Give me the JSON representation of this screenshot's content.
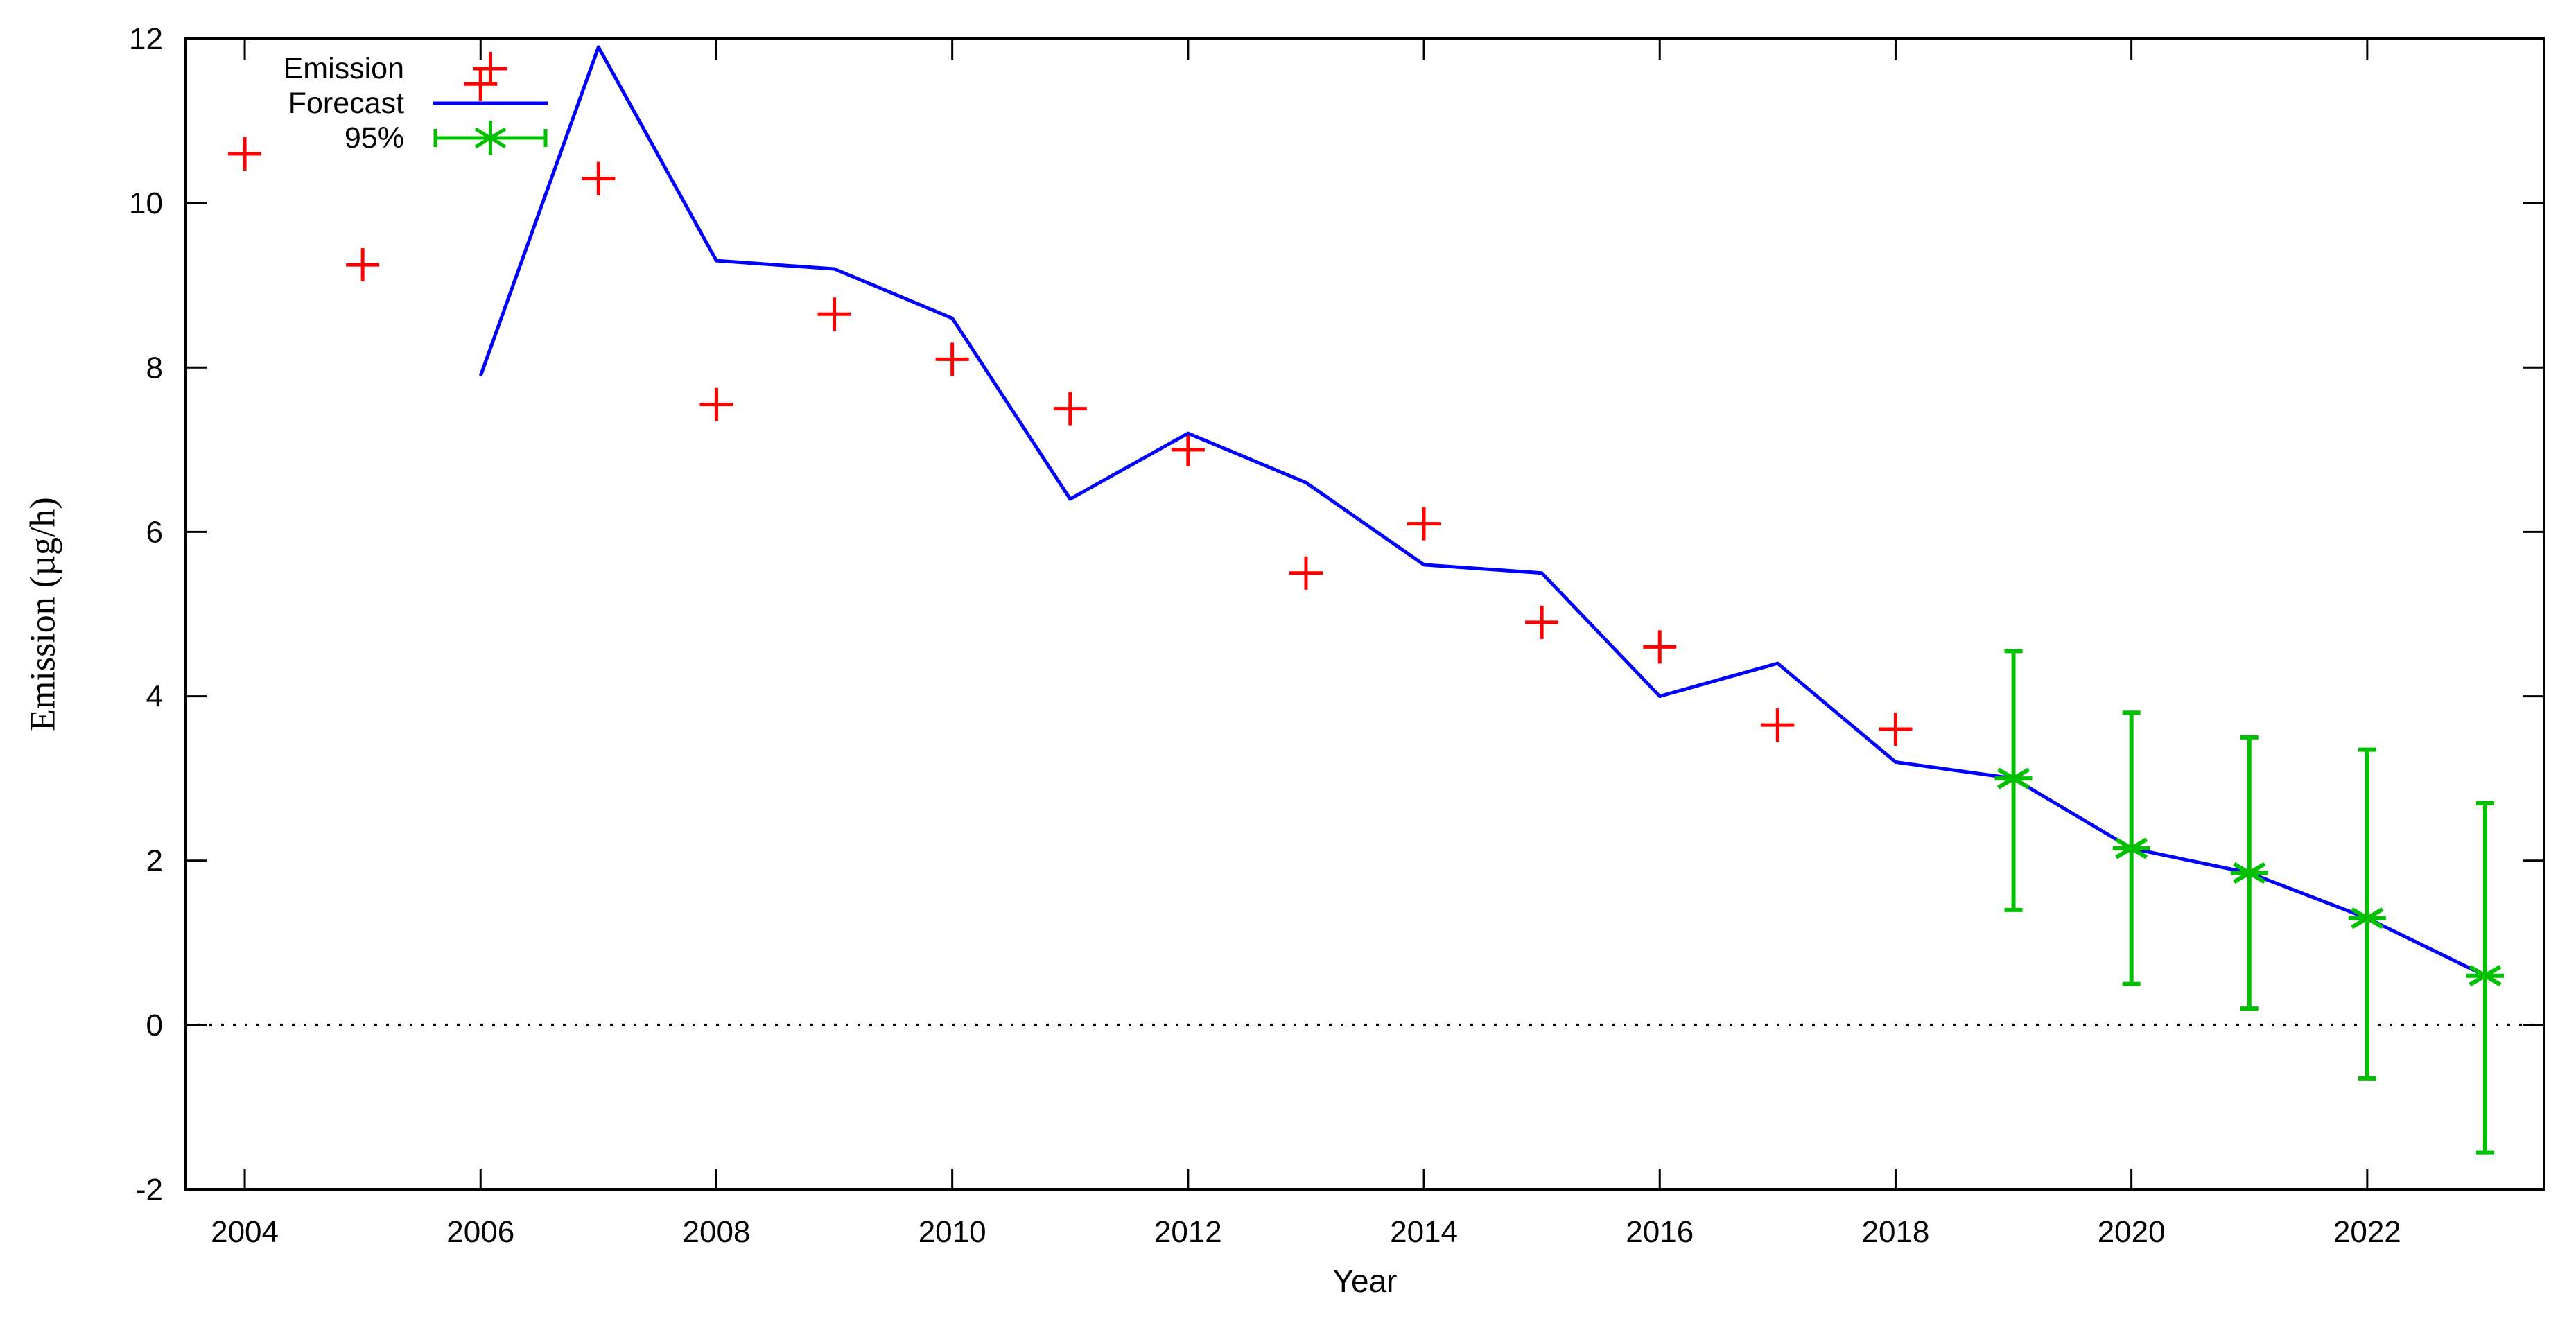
{
  "chart_data": {
    "type": "line",
    "title": "",
    "xlabel": "Year",
    "ylabel": "Emission (µg/h)",
    "xlim": [
      2003.5,
      2023.5
    ],
    "ylim": [
      -2,
      12
    ],
    "x_ticks": [
      2004,
      2006,
      2008,
      2010,
      2012,
      2014,
      2016,
      2018,
      2020,
      2022
    ],
    "y_ticks": [
      -2,
      0,
      2,
      4,
      6,
      8,
      10,
      12
    ],
    "zero_line_y": 0,
    "grid": false,
    "legend_position": "top-left",
    "colors": {
      "emission": "#ff0000",
      "forecast": "#0000ff",
      "ci": "#00c000",
      "axis": "#000000",
      "background": "#ffffff"
    },
    "series": [
      {
        "name": "Emission",
        "type": "scatter",
        "marker": "plus",
        "color": "#ff0000",
        "x": [
          2004,
          2005,
          2006,
          2007,
          2008,
          2009,
          2010,
          2011,
          2012,
          2013,
          2014,
          2015,
          2016,
          2017,
          2018
        ],
        "y": [
          10.6,
          9.25,
          11.45,
          10.3,
          7.55,
          8.65,
          8.1,
          7.5,
          7.0,
          5.5,
          6.1,
          4.9,
          4.6,
          3.65,
          3.6
        ]
      },
      {
        "name": "Forecast",
        "type": "line",
        "color": "#0000ff",
        "x": [
          2006,
          2007,
          2008,
          2009,
          2010,
          2011,
          2012,
          2013,
          2014,
          2015,
          2016,
          2017,
          2018,
          2019,
          2020,
          2021,
          2022,
          2023
        ],
        "y": [
          7.9,
          11.9,
          9.3,
          9.2,
          8.6,
          6.4,
          7.2,
          6.6,
          5.6,
          5.5,
          4.0,
          4.4,
          3.2,
          3.0,
          2.15,
          1.85,
          1.3,
          0.6
        ]
      },
      {
        "name": "95%",
        "type": "errorbar",
        "marker": "asterisk",
        "color": "#00c000",
        "x": [
          2019,
          2020,
          2021,
          2022,
          2023
        ],
        "y": [
          3.0,
          2.15,
          1.85,
          1.3,
          0.6
        ],
        "y_lo": [
          1.4,
          0.5,
          0.2,
          -0.65,
          -1.55
        ],
        "y_hi": [
          4.55,
          3.8,
          3.5,
          3.35,
          2.7
        ]
      }
    ]
  }
}
